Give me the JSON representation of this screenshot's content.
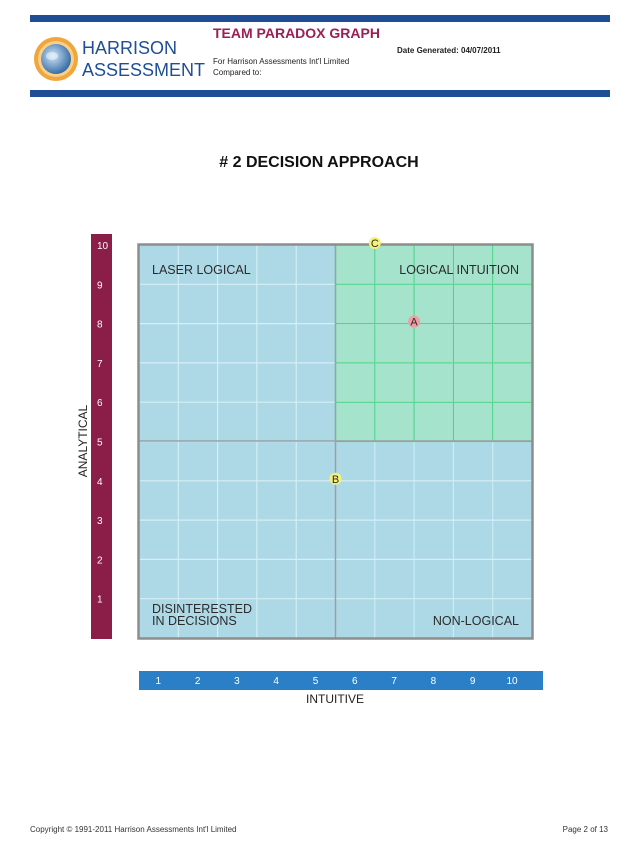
{
  "header": {
    "title": "TEAM PARADOX GRAPH",
    "date_generated": "Date Generated: 04/07/2011",
    "for_line": "For Harrison Assessments Int'l Limited",
    "compared_to": "Compared to:",
    "logo_line1": "HARRISON",
    "logo_line2": "ASSESSMENTS"
  },
  "section_title": "# 2 DECISION APPROACH",
  "colors": {
    "brand_blue": "#1f4e96",
    "brand_maroon": "#8b1e48",
    "axis_x": "#2a7fc6",
    "quadrant_blue": "#add8e6",
    "quadrant_green": "#a6e3cc",
    "marker_red": "#f39ca2",
    "marker_yellow": "#f5f27a"
  },
  "chart_data": {
    "type": "scatter",
    "title": "",
    "xlabel": "INTUITIVE",
    "ylabel": "ANALYTICAL",
    "xlim": [
      0,
      10
    ],
    "ylim": [
      0,
      10
    ],
    "x_ticks": [
      "1",
      "2",
      "3",
      "4",
      "5",
      "6",
      "7",
      "8",
      "9",
      "10"
    ],
    "y_ticks": [
      "1",
      "2",
      "3",
      "4",
      "5",
      "6",
      "7",
      "8",
      "9",
      "10"
    ],
    "grid": true,
    "quadrants": {
      "top_left": "LASER LOGICAL",
      "top_right": "LOGICAL INTUITION",
      "bottom_left_line1": "DISINTERESTED",
      "bottom_left_line2": "IN DECISIONS",
      "bottom_right": "NON-LOGICAL"
    },
    "points": [
      {
        "label": "A",
        "x": 7,
        "y": 8,
        "color": "red"
      },
      {
        "label": "B",
        "x": 5,
        "y": 4,
        "color": "yellow"
      },
      {
        "label": "C",
        "x": 6,
        "y": 10,
        "color": "yellow"
      }
    ]
  },
  "footer": {
    "copyright": "Copyright © 1991-2011 Harrison Assessments Int'l Limited",
    "page": "Page 2 of 13"
  }
}
